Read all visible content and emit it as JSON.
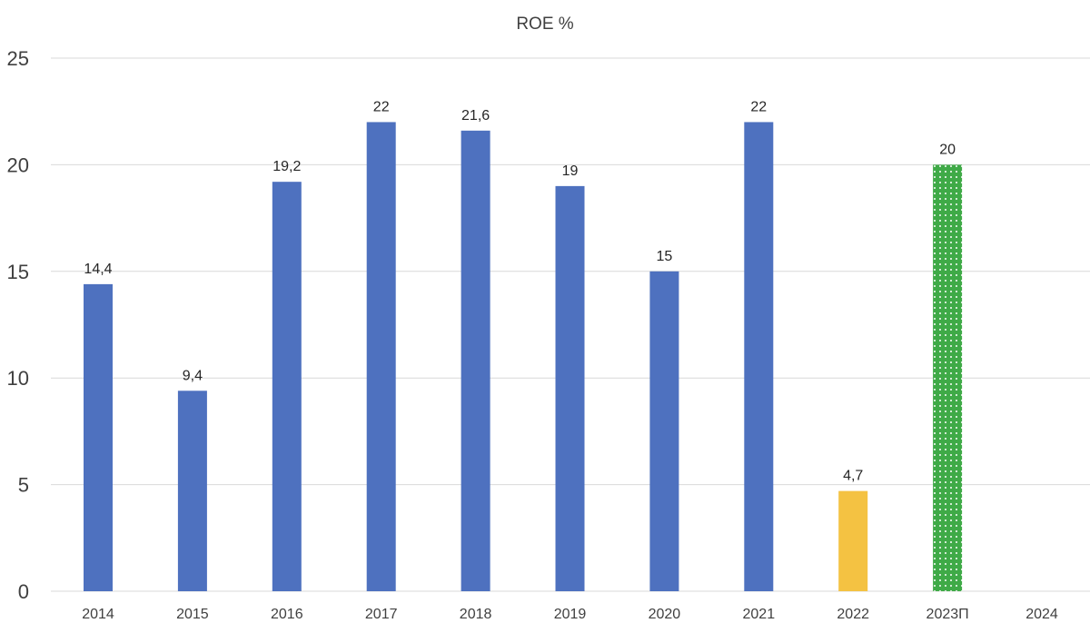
{
  "chart_data": {
    "type": "bar",
    "title": "ROE %",
    "xlabel": "",
    "ylabel": "",
    "categories": [
      "2014",
      "2015",
      "2016",
      "2017",
      "2018",
      "2019",
      "2020",
      "2021",
      "2022",
      "2023П",
      "2024"
    ],
    "values": [
      14.4,
      9.4,
      19.2,
      22,
      21.6,
      19,
      15,
      22,
      4.7,
      20,
      null
    ],
    "data_labels": [
      "14,4",
      "9,4",
      "19,2",
      "22",
      "21,6",
      "19",
      "15",
      "22",
      "4,7",
      "20",
      ""
    ],
    "bar_colors": [
      "#4e71bf",
      "#4e71bf",
      "#4e71bf",
      "#4e71bf",
      "#4e71bf",
      "#4e71bf",
      "#4e71bf",
      "#4e71bf",
      "#f4c242",
      "#3faa47",
      "#4e71bf"
    ],
    "bar_patterns": [
      "solid",
      "solid",
      "solid",
      "solid",
      "solid",
      "solid",
      "solid",
      "solid",
      "solid",
      "dotted",
      "solid"
    ],
    "ylim": [
      0,
      25
    ],
    "yticks": [
      0,
      5,
      10,
      15,
      20,
      25
    ],
    "grid": true,
    "legend": "none"
  }
}
